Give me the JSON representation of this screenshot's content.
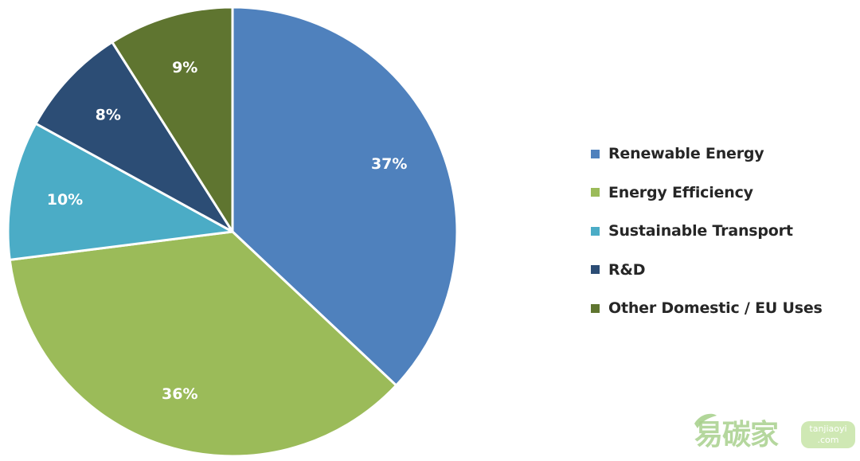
{
  "chart_data": {
    "type": "pie",
    "title": "",
    "start_angle_deg": 0,
    "direction": "clockwise",
    "slices": [
      {
        "label": "Renewable Energy",
        "value": 37,
        "display": "37%",
        "color": "#4F81BD"
      },
      {
        "label": "Energy Efficiency",
        "value": 36,
        "display": "36%",
        "color": "#9BBB59"
      },
      {
        "label": "Sustainable Transport",
        "value": 10,
        "display": "10%",
        "color": "#4BACC6"
      },
      {
        "label": "R&D",
        "value": 8,
        "display": "8%",
        "color": "#2C4D75"
      },
      {
        "label": "Other Domestic / EU Uses",
        "value": 9,
        "display": "9%",
        "color": "#5F7530"
      }
    ],
    "legend_position": "right"
  },
  "watermark": {
    "brand": "易碳家",
    "domain_line1": "tanjiaoyi",
    "domain_line2": ".com",
    "color": "#A9D18E"
  }
}
